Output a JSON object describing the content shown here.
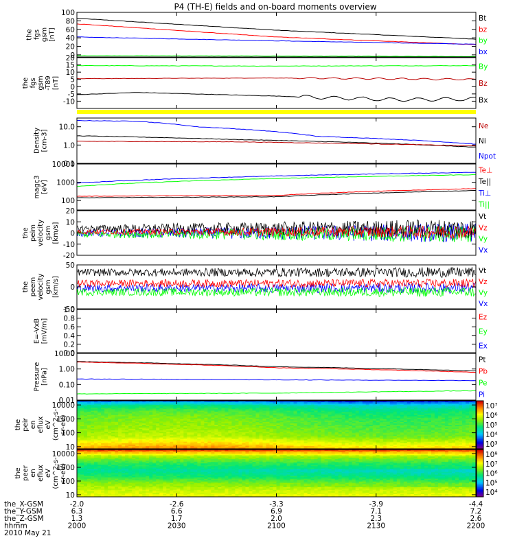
{
  "title": "P4 (TH-E) fields and on-board moments overview",
  "footer": {
    "rows": [
      {
        "label": "the_X-GSM",
        "values": [
          "-2.0",
          "-2.6",
          "-3.3",
          "-3.9",
          "-4.4"
        ]
      },
      {
        "label": "the_Y-GSM",
        "values": [
          "6.3",
          "6.6",
          "6.9",
          "7.1",
          "7.2"
        ]
      },
      {
        "label": "the_Z-GSM",
        "values": [
          "1.3",
          "1.7",
          "2.0",
          "2.3",
          "2.6"
        ]
      },
      {
        "label": "hhmm",
        "values": [
          "2000",
          "2030",
          "2100",
          "2130",
          "2200"
        ]
      }
    ],
    "date": "2010 May 21"
  },
  "colors": {
    "black": "#000000",
    "red": "#ff0000",
    "green": "#00ff00",
    "blue": "#0000ff",
    "dark_red": "#bb0000",
    "yellow": "#ffff00"
  },
  "chart_data": [
    {
      "type": "line",
      "ylabel": [
        "the",
        "fgs",
        "gsm",
        "[nT]"
      ],
      "ylim": [
        -5,
        100
      ],
      "yticks": [
        "100",
        "80",
        "60",
        "40",
        "20",
        "0"
      ],
      "legend": [
        {
          "name": "Bt",
          "color": "#000000"
        },
        {
          "name": "bz",
          "color": "#ff0000"
        },
        {
          "name": "by",
          "color": "#00ff00"
        },
        {
          "name": "bx",
          "color": "#0000ff"
        }
      ],
      "series": [
        {
          "name": "Bt",
          "color": "#000000",
          "x": [
            0,
            0.5,
            1
          ],
          "y": [
            86,
            58,
            37
          ]
        },
        {
          "name": "bz",
          "color": "#ff0000",
          "x": [
            0,
            0.5,
            1
          ],
          "y": [
            73,
            42,
            24
          ]
        },
        {
          "name": "bx",
          "color": "#0000ff",
          "x": [
            0,
            0.5,
            1
          ],
          "y": [
            42,
            33,
            25
          ]
        },
        {
          "name": "by",
          "color": "#00ff00",
          "x": [
            0,
            0.5,
            1
          ],
          "y": [
            -2,
            -3,
            -4
          ]
        }
      ]
    },
    {
      "type": "line",
      "ylabel": [
        "the",
        "fgs",
        "gsm",
        "-T89",
        "[nT]"
      ],
      "ylim": [
        -15,
        20
      ],
      "yticks": [
        "20",
        "15",
        "10",
        "5",
        "0",
        "-5",
        "-10"
      ],
      "legend": [
        {
          "name": "By",
          "color": "#00ff00"
        },
        {
          "name": "Bz",
          "color": "#bb0000"
        },
        {
          "name": "Bx",
          "color": "#000000"
        }
      ],
      "series": [
        {
          "name": "By",
          "color": "#00ff00",
          "x": [
            0,
            0.5,
            1
          ],
          "y": [
            14.5,
            14.2,
            14.5
          ]
        },
        {
          "name": "Bz",
          "color": "#bb0000",
          "x": [
            0,
            0.5,
            1
          ],
          "y": [
            5.5,
            6,
            5
          ]
        },
        {
          "name": "Bx",
          "color": "#000000",
          "x": [
            0,
            0.15,
            0.5,
            0.8,
            1
          ],
          "y": [
            -5.5,
            -4,
            -6.5,
            -9,
            -8.5
          ]
        }
      ]
    },
    {
      "type": "line",
      "ylabel": [
        "Density",
        "[cm-3]"
      ],
      "yscale": "log",
      "ylim": [
        0.1,
        30
      ],
      "yticks": [
        "10.0",
        "1.0",
        "0.1"
      ],
      "legend": [
        {
          "name": "Ne",
          "color": "#bb0000"
        },
        {
          "name": "Ni",
          "color": "#000000"
        },
        {
          "name": "Npot",
          "color": "#0000ff"
        }
      ],
      "series": [
        {
          "name": "Npot",
          "color": "#0000ff",
          "x": [
            0,
            0.15,
            0.3,
            0.6,
            1
          ],
          "y": [
            22,
            20,
            10,
            3,
            1.1
          ]
        },
        {
          "name": "Ni",
          "color": "#000000",
          "x": [
            0,
            0.4,
            1
          ],
          "y": [
            3.2,
            2.0,
            0.75
          ]
        },
        {
          "name": "Ne",
          "color": "#bb0000",
          "x": [
            0,
            0.4,
            1
          ],
          "y": [
            1.6,
            1.5,
            0.9
          ]
        }
      ]
    },
    {
      "type": "line",
      "ylabel": [
        "magç3",
        "[eV]"
      ],
      "yscale": "log",
      "ylim": [
        30,
        10000
      ],
      "yticks": [
        "10000",
        "1000",
        "100"
      ],
      "legend": [
        {
          "name": "Te⊥",
          "color": "#ff0000"
        },
        {
          "name": "Te||",
          "color": "#000000"
        },
        {
          "name": "Ti⊥",
          "color": "#0000ff"
        },
        {
          "name": "Ti||",
          "color": "#00ff00"
        }
      ],
      "series": [
        {
          "name": "Ti⊥",
          "color": "#0000ff",
          "x": [
            0,
            1
          ],
          "y": [
            900,
            3500
          ]
        },
        {
          "name": "Ti||",
          "color": "#00ff00",
          "x": [
            0,
            1
          ],
          "y": [
            600,
            2600
          ]
        },
        {
          "name": "Te⊥",
          "color": "#ff0000",
          "x": [
            0,
            0.5,
            1
          ],
          "y": [
            170,
            190,
            450
          ]
        },
        {
          "name": "Te||",
          "color": "#000000",
          "x": [
            0,
            0.5,
            1
          ],
          "y": [
            140,
            160,
            350
          ]
        }
      ]
    },
    {
      "type": "line",
      "ylabel": [
        "the",
        "peim",
        "velocity",
        "gsm",
        "[km/s]"
      ],
      "ylim": [
        -20,
        20
      ],
      "yticks": [
        "20",
        "10",
        "0",
        "-10",
        "-20"
      ],
      "legend": [
        {
          "name": "Vt",
          "color": "#000000"
        },
        {
          "name": "Vz",
          "color": "#ff0000"
        },
        {
          "name": "Vy",
          "color": "#00ff00"
        },
        {
          "name": "Vx",
          "color": "#0000ff"
        }
      ],
      "noisy": [
        {
          "name": "Vx",
          "color": "#0000ff",
          "base": 0,
          "amp0": 3,
          "amp1": 9
        },
        {
          "name": "Vy",
          "color": "#00ff00",
          "base": -1,
          "amp0": 3,
          "amp1": 8
        },
        {
          "name": "Vt",
          "color": "#000000",
          "base": 4,
          "amp0": 3,
          "amp1": 9
        },
        {
          "name": "Vz",
          "color": "#ff0000",
          "base": 1,
          "amp0": 2,
          "amp1": 6
        }
      ]
    },
    {
      "type": "line",
      "ylabel": [
        "the",
        "peem",
        "velocity",
        "gsm",
        "[km/s]"
      ],
      "ylim": [
        -50,
        50
      ],
      "yticks": [
        "50",
        "0",
        "-50"
      ],
      "legend": [
        {
          "name": "Vt",
          "color": "#000000"
        },
        {
          "name": "Vz",
          "color": "#ff0000"
        },
        {
          "name": "Vy",
          "color": "#00ff00"
        },
        {
          "name": "Vx",
          "color": "#0000ff"
        }
      ],
      "noisy": [
        {
          "name": "Vx",
          "color": "#0000ff",
          "base": -3,
          "amp0": 9,
          "amp1": 12
        },
        {
          "name": "Vt",
          "color": "#000000",
          "base": 33,
          "amp0": 8,
          "amp1": 12
        },
        {
          "name": "Vz",
          "color": "#ff0000",
          "base": 8,
          "amp0": 8,
          "amp1": 10
        },
        {
          "name": "Vy",
          "color": "#00ff00",
          "base": -12,
          "amp0": 8,
          "amp1": 11
        }
      ]
    },
    {
      "type": "line",
      "ylabel": [
        "E=-VxB",
        "[mV/m]"
      ],
      "ylim": [
        0,
        1
      ],
      "yticks": [
        "1.0",
        "0.8",
        "0.6",
        "0.4",
        "0.2",
        "0.0"
      ],
      "legend": [
        {
          "name": "Ez",
          "color": "#ff0000"
        },
        {
          "name": "Ey",
          "color": "#00ff00"
        },
        {
          "name": "Ex",
          "color": "#0000ff"
        }
      ],
      "series": []
    },
    {
      "type": "line",
      "ylabel": [
        "Pressure",
        "[nPa]"
      ],
      "yscale": "log",
      "ylim": [
        0.01,
        10
      ],
      "yticks": [
        "10.00",
        "1.00",
        "0.10",
        "0.01"
      ],
      "legend": [
        {
          "name": "Pt",
          "color": "#000000"
        },
        {
          "name": "Pb",
          "color": "#ff0000"
        },
        {
          "name": "Pe",
          "color": "#00ff00"
        },
        {
          "name": "Pi",
          "color": "#0000ff"
        }
      ],
      "series": [
        {
          "name": "Pt",
          "color": "#000000",
          "x": [
            0,
            0.5,
            1
          ],
          "y": [
            3.0,
            1.4,
            0.75
          ]
        },
        {
          "name": "Pb",
          "color": "#ff0000",
          "x": [
            0,
            0.5,
            1
          ],
          "y": [
            2.8,
            1.2,
            0.6
          ]
        },
        {
          "name": "Pi",
          "color": "#0000ff",
          "x": [
            0,
            0.5,
            1
          ],
          "y": [
            0.23,
            0.2,
            0.18
          ]
        },
        {
          "name": "Pe",
          "color": "#00ff00",
          "x": [
            0,
            0.5,
            1
          ],
          "y": [
            0.025,
            0.028,
            0.04
          ]
        }
      ]
    },
    {
      "type": "heatmap",
      "ylabel": [
        "the",
        "peir",
        "en",
        "eflux",
        "eV",
        "(cm^2-s-",
        "sr-eV)"
      ],
      "yscale": "log",
      "ylim": [
        7,
        20000
      ],
      "yticks": [
        "10000",
        "1000",
        "100",
        "10"
      ],
      "colorbar": {
        "ticks": [
          "10⁷",
          "10⁶",
          "10⁵",
          "10⁴",
          "10³"
        ]
      },
      "profile": [
        [
          0,
          0.22
        ],
        [
          0.08,
          0.4
        ],
        [
          0.2,
          0.5
        ],
        [
          0.35,
          0.55
        ],
        [
          0.55,
          0.58
        ],
        [
          0.75,
          0.62
        ],
        [
          0.88,
          0.72
        ],
        [
          1.0,
          0.82
        ]
      ]
    },
    {
      "type": "heatmap",
      "ylabel": [
        "the",
        "peer",
        "en",
        "eflux",
        "eV",
        "(cm^2-s-",
        "sr-eV)"
      ],
      "yscale": "log",
      "ylim": [
        7,
        20000
      ],
      "yticks": [
        "10000",
        "1000",
        "100",
        "10"
      ],
      "colorbar": {
        "ticks": [
          "10⁸",
          "10⁷",
          "10⁶",
          "10⁵",
          "10⁴"
        ]
      },
      "profile": [
        [
          0,
          0.92
        ],
        [
          0.05,
          0.8
        ],
        [
          0.15,
          0.6
        ],
        [
          0.3,
          0.48
        ],
        [
          0.45,
          0.42
        ],
        [
          0.6,
          0.5
        ],
        [
          0.72,
          0.6
        ],
        [
          0.88,
          0.66
        ],
        [
          1.0,
          0.7
        ]
      ]
    }
  ]
}
